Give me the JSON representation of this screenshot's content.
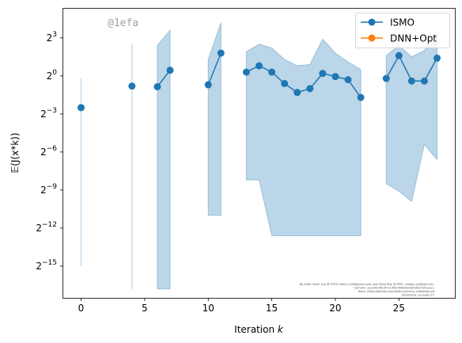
{
  "chart_data": {
    "type": "line",
    "xlabel_main": "Iteration ",
    "xlabel_var": "k",
    "ylabel": "𝔼(J(x*k))",
    "x_ticks": [
      0,
      5,
      10,
      15,
      20,
      25
    ],
    "y_ticks_exp": [
      3,
      0,
      -3,
      -6,
      -9,
      -12,
      -15
    ],
    "y_tick_base": "2",
    "xlim": [
      -1.4,
      29.4
    ],
    "ylim_log2": [
      -17.5,
      5.3
    ],
    "grid": false,
    "legend_position": "top-right",
    "series": [
      {
        "name": "ISMO",
        "color": "#1f77b4",
        "points": [
          {
            "x": 0,
            "y": -2.5
          },
          {
            "x": 4,
            "y": -0.8
          },
          {
            "x": 6,
            "y": -0.85
          },
          {
            "x": 7,
            "y": 0.45
          },
          {
            "x": 10,
            "y": -0.7
          },
          {
            "x": 11,
            "y": 1.8
          },
          {
            "x": 13,
            "y": 0.3
          },
          {
            "x": 14,
            "y": 0.8
          },
          {
            "x": 15,
            "y": 0.3
          },
          {
            "x": 16,
            "y": -0.6
          },
          {
            "x": 17,
            "y": -1.3
          },
          {
            "x": 18,
            "y": -1.0
          },
          {
            "x": 19,
            "y": 0.2
          },
          {
            "x": 20,
            "y": -0.05
          },
          {
            "x": 21,
            "y": -0.3
          },
          {
            "x": 22,
            "y": -1.7
          },
          {
            "x": 24,
            "y": -0.2
          },
          {
            "x": 25,
            "y": 1.6
          },
          {
            "x": 26,
            "y": -0.4
          },
          {
            "x": 27,
            "y": -0.4
          },
          {
            "x": 28,
            "y": 1.4
          }
        ],
        "segments": [
          [
            0
          ],
          [
            4
          ],
          [
            6,
            7
          ],
          [
            10,
            11
          ],
          [
            13,
            14,
            15,
            16,
            17,
            18,
            19,
            20,
            21,
            22
          ],
          [
            24,
            25,
            26,
            27,
            28
          ]
        ],
        "bands": [
          {
            "x": [
              0
            ],
            "lower": [
              -15
            ],
            "upper": [
              -0.2
            ]
          },
          {
            "x": [
              4
            ],
            "lower": [
              -16.8
            ],
            "upper": [
              2.5
            ]
          },
          {
            "x": [
              6,
              7
            ],
            "lower": [
              -16.8,
              -16.8
            ],
            "upper": [
              2.4,
              3.6
            ]
          },
          {
            "x": [
              10,
              11
            ],
            "lower": [
              -11,
              -11
            ],
            "upper": [
              1.3,
              4.2
            ]
          },
          {
            "x": [
              13,
              14,
              15,
              16,
              17,
              18,
              19,
              20,
              21,
              22
            ],
            "lower": [
              -8.2,
              -8.2,
              -12.6,
              -12.6,
              -12.6,
              -12.6,
              -12.6,
              -12.6,
              -12.6,
              -12.6
            ],
            "upper": [
              1.9,
              2.5,
              2.2,
              1.3,
              0.8,
              0.9,
              2.9,
              1.8,
              1.1,
              0.5
            ]
          },
          {
            "x": [
              24,
              25,
              26,
              27,
              28
            ],
            "lower": [
              -8.5,
              -9.1,
              -9.9,
              -5.4,
              -6.6
            ],
            "upper": [
              1.6,
              2.4,
              1.5,
              2.0,
              3.4
            ]
          }
        ]
      },
      {
        "name": "DNN+Opt",
        "color": "#ff7f0e",
        "points": []
      }
    ],
    "annotations": [
      "@1efa",
      "By Kjetil Olsen Lye @ ETHZ kjetil.o.lye@gmail.com and Deep Ray @ EPFL <deep.ray@epfl.ch>",
      "Commit: 1e1ef41f9b3f71136b786b9dd28d3927b01eecc",
      "Repo: https://github.com/kjetil-lye/ismo_validation.git",
      "Hostname: eu-login-37"
    ]
  }
}
